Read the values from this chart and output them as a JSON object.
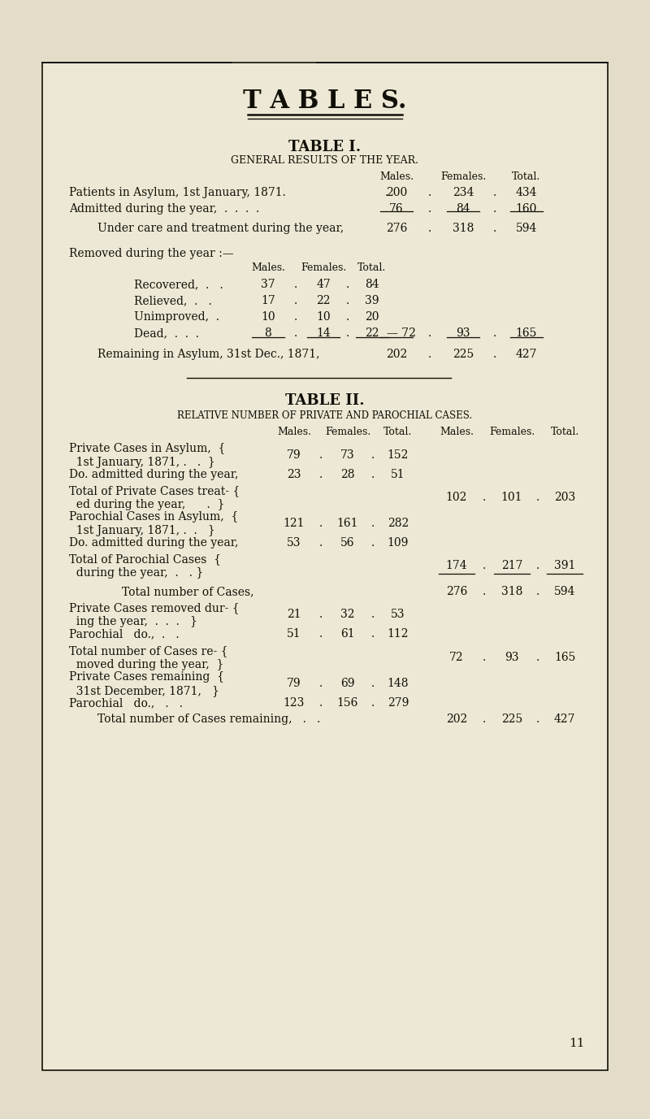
{
  "page_bg": "#e2dcc8",
  "box_bg": "#ede8d5",
  "text_color": "#111008",
  "title_tables": "T A B L E S.",
  "table1_title": "TABLE I.",
  "table1_subtitle": "GENERAL RESULTS OF THE YEAR.",
  "table2_title": "TABLE II.",
  "table2_subtitle": "RELATIVE NUMBER OF PRIVATE AND PAROCHIAL CASES.",
  "page_number": "11"
}
